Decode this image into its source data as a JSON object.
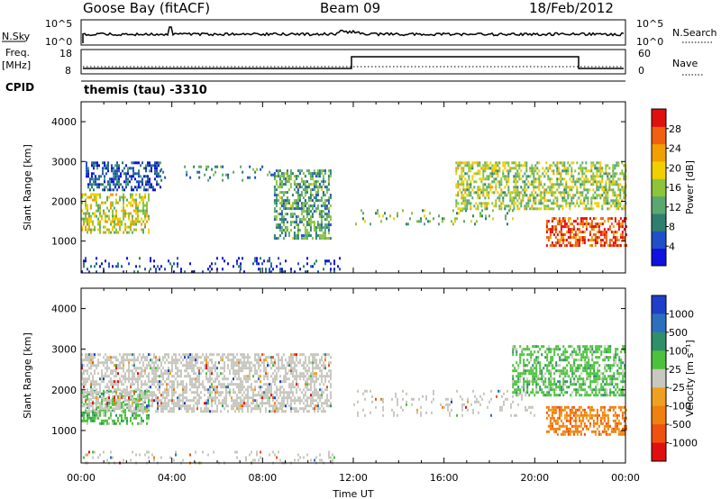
{
  "header": {
    "site": "Goose Bay (fitACF)",
    "beam": "Beam 09",
    "date": "18/Feb/2012"
  },
  "strips": {
    "nsky_label": "N.Sky",
    "nsky_ticks": [
      "10^5",
      "10^0"
    ],
    "nsearch_label": "N.Search",
    "nsearch_ticks": [
      "10^5",
      "10^0"
    ],
    "freq_label": "Freq.",
    "freq_units": "[MHz]",
    "freq_ticks": [
      "18",
      "8"
    ],
    "nave_label": "Nave",
    "nave_ticks": [
      "60",
      "0"
    ],
    "cpid_label": "CPID",
    "cpid_value": "themis (tau) -3310"
  },
  "colors": {
    "power_scale": [
      "#1010e0",
      "#2050c8",
      "#2f7f6f",
      "#5aa870",
      "#8cc43c",
      "#f0d000",
      "#f0a000",
      "#f06010",
      "#e01010"
    ],
    "velocity_scale": [
      "#1f3fc8",
      "#2c6fbf",
      "#2f8f6a",
      "#4cc23c",
      "#c8c8c0",
      "#f0a020",
      "#f08010",
      "#f05010",
      "#e01010"
    ]
  },
  "chart_data": [
    {
      "type": "heatmap",
      "name": "power",
      "xlabel": "",
      "ylabel": "Slant Range [km]",
      "yticks": [
        "1000",
        "2000",
        "3000",
        "4000"
      ],
      "ylim": [
        200,
        4500
      ],
      "xlim": [
        0,
        24
      ],
      "colorbar_label": "Power [dB]",
      "colorbar_ticks": [
        "4",
        "8",
        "12",
        "16",
        "20",
        "24",
        "28"
      ],
      "colorbar_range": [
        0,
        32
      ],
      "echo_regions": [
        {
          "t": [
            0.0,
            3.0
          ],
          "r": [
            1200,
            2200
          ],
          "value": 18
        },
        {
          "t": [
            0.2,
            3.5
          ],
          "r": [
            2300,
            3000
          ],
          "value": 6
        },
        {
          "t": [
            3.5,
            8.5
          ],
          "r": [
            2500,
            2900
          ],
          "value": 10
        },
        {
          "t": [
            8.5,
            11.0
          ],
          "r": [
            1100,
            2800
          ],
          "value": 12
        },
        {
          "t": [
            12.0,
            19.0
          ],
          "r": [
            1400,
            1800
          ],
          "value": 14
        },
        {
          "t": [
            16.5,
            24.0
          ],
          "r": [
            1800,
            3000
          ],
          "value": 16
        },
        {
          "t": [
            20.5,
            24.0
          ],
          "r": [
            900,
            1600
          ],
          "value": 28
        },
        {
          "t": [
            0.0,
            11.5
          ],
          "r": [
            200,
            600
          ],
          "value": 4
        }
      ]
    },
    {
      "type": "heatmap",
      "name": "velocity",
      "xlabel": "Time UT",
      "ylabel": "Slant Range [km]",
      "xticks": [
        "00:00",
        "04:00",
        "08:00",
        "12:00",
        "16:00",
        "20:00",
        "00:00"
      ],
      "yticks": [
        "1000",
        "2000",
        "3000",
        "4000"
      ],
      "ylim": [
        200,
        4500
      ],
      "xlim": [
        0,
        24
      ],
      "colorbar_label": "Velocity [m s⁻¹]",
      "colorbar_ticks": [
        "1000",
        "500",
        "100",
        "25",
        "-25",
        "-100",
        "-500",
        "-1000"
      ],
      "echo_regions": [
        {
          "t": [
            0.0,
            3.0
          ],
          "r": [
            1200,
            2000
          ],
          "value": 100
        },
        {
          "t": [
            0.0,
            11.0
          ],
          "r": [
            1500,
            2900
          ],
          "value": 0
        },
        {
          "t": [
            12.0,
            20.0
          ],
          "r": [
            1400,
            2000
          ],
          "value": 0
        },
        {
          "t": [
            19.0,
            24.0
          ],
          "r": [
            1900,
            3100
          ],
          "value": 100
        },
        {
          "t": [
            20.5,
            24.0
          ],
          "r": [
            900,
            1600
          ],
          "value": -500
        },
        {
          "t": [
            0.0,
            11.5
          ],
          "r": [
            200,
            500
          ],
          "value": 0
        }
      ]
    }
  ]
}
